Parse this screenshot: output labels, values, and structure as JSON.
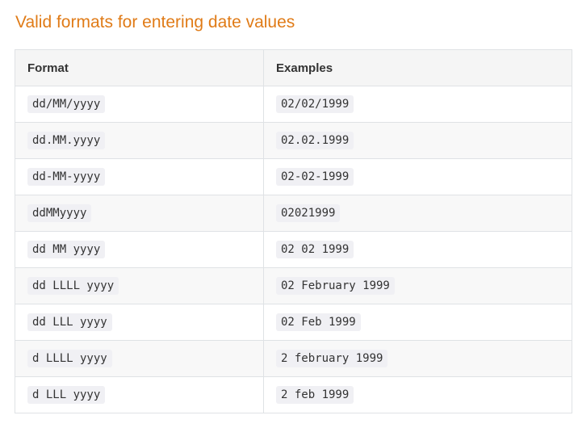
{
  "title": "Valid formats for entering date values",
  "table": {
    "headers": [
      "Format",
      "Examples"
    ],
    "rows": [
      {
        "format": "dd/MM/yyyy",
        "example": "02/02/1999"
      },
      {
        "format": "dd.MM.yyyy",
        "example": "02.02.1999"
      },
      {
        "format": "dd-MM-yyyy",
        "example": "02-02-1999"
      },
      {
        "format": "ddMMyyyy",
        "example": "02021999"
      },
      {
        "format": "dd MM yyyy",
        "example": "02 02 1999"
      },
      {
        "format": "dd LLLL yyyy",
        "example": "02 February 1999"
      },
      {
        "format": "dd LLL yyyy",
        "example": "02 Feb 1999"
      },
      {
        "format": "d LLLL yyyy",
        "example": "2 february 1999"
      },
      {
        "format": "d LLL yyyy",
        "example": "2 feb 1999"
      }
    ]
  }
}
